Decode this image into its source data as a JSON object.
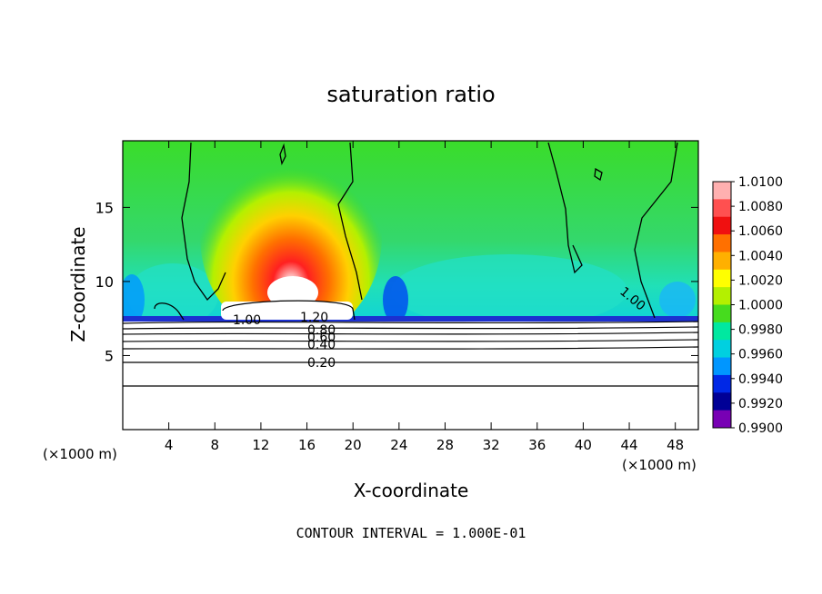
{
  "chart_data": {
    "type": "heatmap",
    "title": "saturation ratio",
    "xlabel": "X-coordinate",
    "ylabel": "Z-coordinate",
    "x_unit": "(×1000 m)",
    "x_unit_right": "(×1000 m)",
    "xlim": [
      0,
      50
    ],
    "ylim": [
      0,
      19.5
    ],
    "x_ticks": [
      4,
      8,
      12,
      16,
      20,
      24,
      28,
      32,
      36,
      40,
      44,
      48
    ],
    "y_ticks": [
      5,
      10,
      15
    ],
    "footer": "CONTOUR INTERVAL = 1.000E-01",
    "grid": false,
    "colorbar": {
      "placement": "right",
      "labels": [
        "1.0100",
        "1.0080",
        "1.0060",
        "1.0040",
        "1.0020",
        "1.0000",
        "0.9980",
        "0.9960",
        "0.9940",
        "0.9920",
        "0.9900"
      ],
      "colors": [
        "#ffb0b0",
        "#ff5050",
        "#f01010",
        "#ff7000",
        "#ffb000",
        "#ffff00",
        "#b4f000",
        "#46dc1e",
        "#00e8a0",
        "#00d0e0",
        "#0096ff",
        "#0028e6",
        "#000096",
        "#7800b4"
      ]
    },
    "contour_labels": [
      "0.20",
      "0.40",
      "0.60",
      "0.80",
      "1.20",
      "1.00",
      "1.00"
    ],
    "contour_levels_lower": [
      0.2,
      0.4,
      0.6,
      0.8,
      1.0,
      1.2
    ],
    "contour_heights_km": [
      3.1,
      4.7,
      5.5,
      6.1,
      6.6,
      7.0,
      7.3,
      7.5
    ],
    "features": {
      "cloud_top_km": 7.7,
      "supersaturation_max_center_x": 15,
      "supersaturation_max_center_z": 10
    }
  }
}
